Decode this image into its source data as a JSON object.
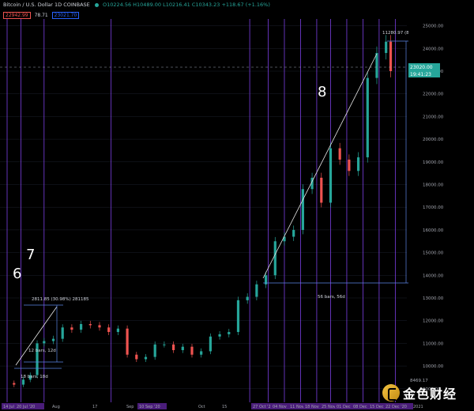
{
  "header": {
    "symbol": "Bitcoin / U.S. Dollar  1D  COINBASE",
    "ohlc": "O10224.56 H10489.00 L10216.41 C10343.23 +118.67 (+1.16%)",
    "sell_price": "22942.99",
    "spread": "78.71",
    "buy_price": "23021.70"
  },
  "colors": {
    "up": "#26a69a",
    "down": "#ef5350",
    "highlight": "#9c27b0",
    "vline": "#7b3fe4",
    "measure": "#5b86e5",
    "grid": "#1b1f2b",
    "axis_text": "#a3a6af"
  },
  "price_axis": {
    "ticks": [
      "25000.00",
      "24000.00",
      "23000.00",
      "22000.00",
      "21000.00",
      "20000.00",
      "19000.00",
      "18000.00",
      "17000.00",
      "16000.00",
      "15000.00",
      "14000.00",
      "13000.00",
      "12000.00",
      "11000.00",
      "10000.00",
      "9000.00"
    ],
    "current_label": "23020.00",
    "countdown_label": "19:41:23",
    "low_label": "8469.17"
  },
  "time_axis": {
    "labels": [
      "14 Jul '20",
      "20 Jul '20",
      "Aug",
      "17",
      "Sep",
      "10 Sep '20",
      "Oct",
      "15",
      "27 Oct '20",
      "04 Nov",
      "11 Nov",
      "18 Nov",
      "25 Nov",
      "01 Dec",
      "08 Dec",
      "15 Dec",
      "22 Dec '20",
      "2021"
    ]
  },
  "annotations": {
    "wave6": "6",
    "wave7": "7",
    "wave8": "8",
    "measure1_price": "2811.85 (30.98%) 281185",
    "measure1_bars": "12 bars, 12d",
    "measure1_range": "18 bars, 18d",
    "measure2_price": "11280.97 (87.35%) 1128097",
    "measure2_bars": "56 bars, 56d"
  },
  "chart_data": {
    "type": "candlestick",
    "title": "Bitcoin / U.S. Dollar 1D COINBASE",
    "xlabel": "",
    "ylabel": "",
    "ylim": [
      8400,
      25300
    ],
    "x_range": [
      "2020-07-14",
      "2021-01-03"
    ],
    "grid": true,
    "series": [
      {
        "name": "BTCUSD",
        "x": [
          "2020-07-14",
          "2020-07-17",
          "2020-07-21",
          "2020-07-24",
          "2020-07-27",
          "2020-07-30",
          "2020-08-03",
          "2020-08-07",
          "2020-08-11",
          "2020-08-15",
          "2020-08-19",
          "2020-08-23",
          "2020-08-27",
          "2020-08-31",
          "2020-09-04",
          "2020-09-08",
          "2020-09-12",
          "2020-09-16",
          "2020-09-20",
          "2020-09-24",
          "2020-09-28",
          "2020-10-02",
          "2020-10-06",
          "2020-10-10",
          "2020-10-14",
          "2020-10-18",
          "2020-10-22",
          "2020-10-26",
          "2020-10-30",
          "2020-11-03",
          "2020-11-07",
          "2020-11-11",
          "2020-11-15",
          "2020-11-19",
          "2020-11-23",
          "2020-11-27",
          "2020-12-01",
          "2020-12-05",
          "2020-12-09",
          "2020-12-13",
          "2020-12-17",
          "2020-12-21",
          "2020-12-25",
          "2020-12-27"
        ],
        "close": [
          9250,
          9180,
          9400,
          9600,
          11000,
          11100,
          11200,
          11700,
          11600,
          11850,
          11800,
          11700,
          11500,
          11650,
          10500,
          10300,
          10400,
          10950,
          10950,
          10700,
          10850,
          10500,
          10650,
          11300,
          11400,
          11500,
          12900,
          13050,
          13600,
          14000,
          15500,
          15700,
          16000,
          17800,
          18300,
          17200,
          19600,
          19100,
          18600,
          19200,
          22700,
          23800,
          24300,
          23000
        ]
      }
    ],
    "vertical_markers": [
      "2020-07-14",
      "2020-07-20",
      "2020-07-30",
      "2020-08-28",
      "2020-10-27",
      "2020-11-04",
      "2020-11-11",
      "2020-11-18",
      "2020-11-25",
      "2020-12-01",
      "2020-12-08",
      "2020-12-15",
      "2020-12-22",
      "2020-12-29"
    ],
    "annotations": [
      "6",
      "7",
      "8",
      "2811.85 (30.98%) 281185",
      "12 bars, 12d",
      "18 bars, 18d",
      "11280.97 (87.35%) 1128097",
      "56 bars, 56d"
    ]
  }
}
